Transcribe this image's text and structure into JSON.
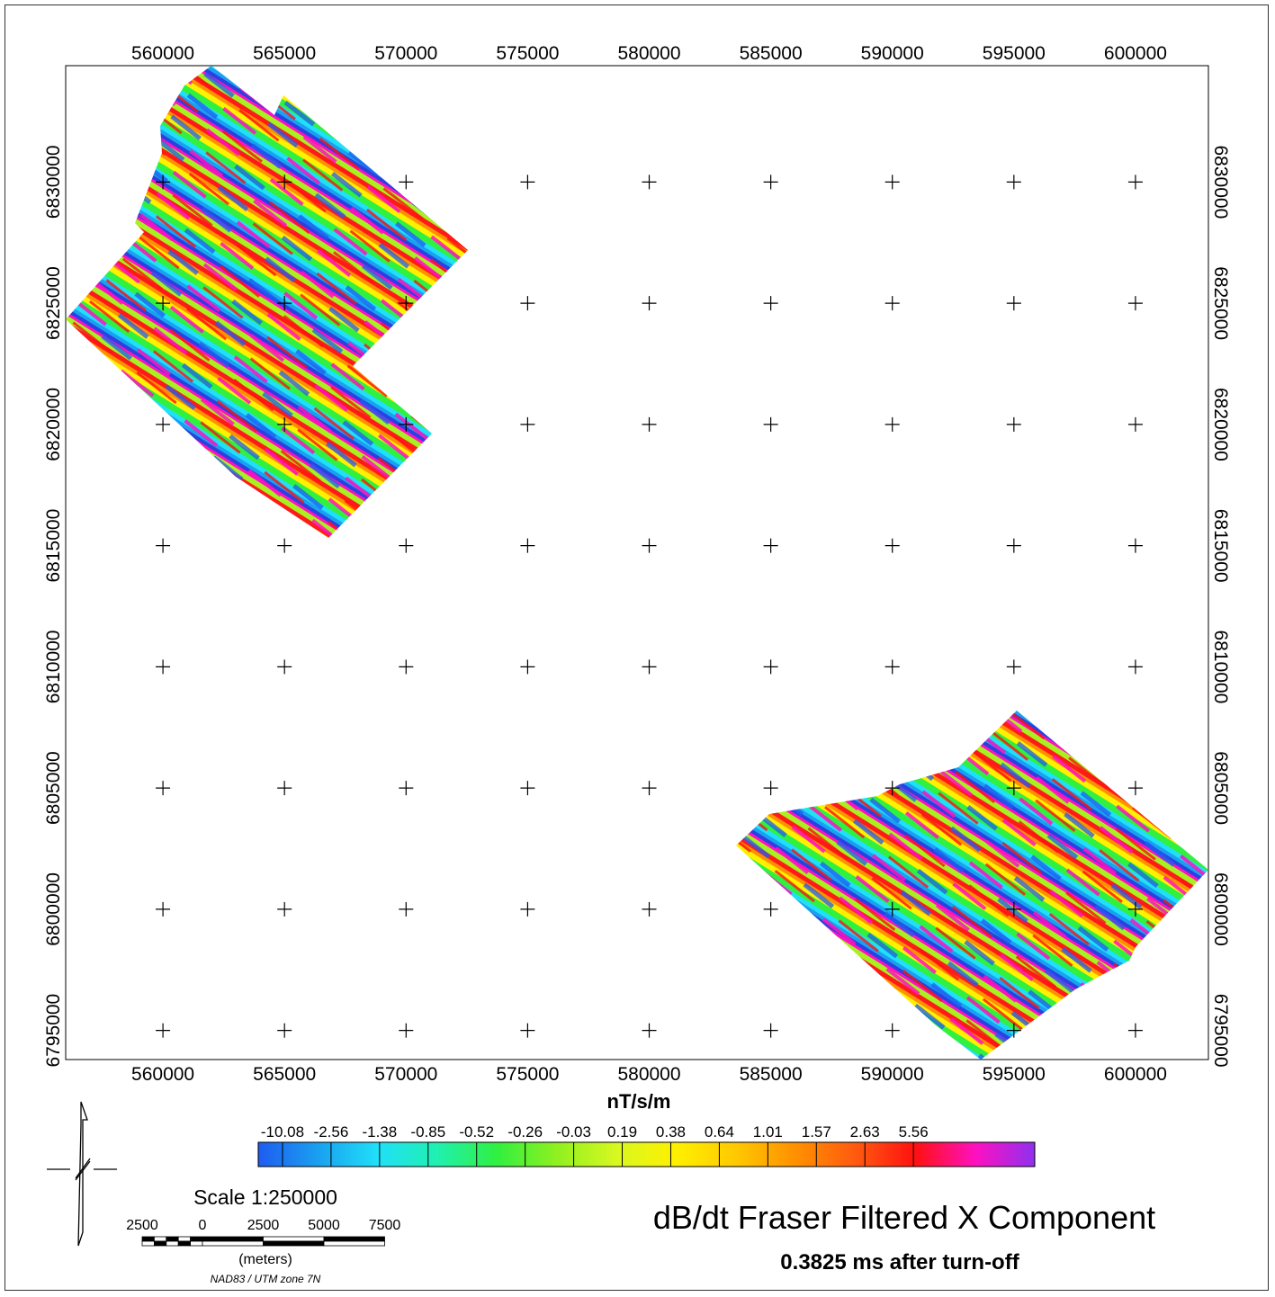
{
  "map": {
    "x_ticks": [
      "560000",
      "565000",
      "570000",
      "575000",
      "580000",
      "585000",
      "590000",
      "595000",
      "600000"
    ],
    "y_ticks": [
      "6830000",
      "6825000",
      "6820000",
      "6815000",
      "6810000",
      "6805000",
      "6800000",
      "6795000"
    ],
    "x_range": [
      556000,
      603000
    ],
    "y_range": [
      6793800,
      6834800
    ],
    "units": "nT/s/m"
  },
  "legend": {
    "labels": [
      "-10.08",
      "-2.56",
      "-1.38",
      "-0.85",
      "-0.52",
      "-0.26",
      "-0.03",
      "0.19",
      "0.38",
      "0.64",
      "1.01",
      "1.57",
      "2.63",
      "5.56"
    ],
    "colors": [
      "#1e5cf0",
      "#1aa0f0",
      "#20e0f8",
      "#20f0b0",
      "#30f040",
      "#90f020",
      "#d8f820",
      "#fff000",
      "#ffc800",
      "#ff9000",
      "#ff5a10",
      "#ff1010",
      "#ff10c0",
      "#9030f0"
    ]
  },
  "scale": {
    "label": "Scale 1:250000",
    "ticks": [
      "2500",
      "0",
      "2500",
      "5000",
      "7500"
    ],
    "units": "(meters)",
    "projection": "NAD83 / UTM zone 7N"
  },
  "title": {
    "main": "dB/dt Fraser Filtered X Component",
    "sub": "0.3825 ms after turn-off"
  }
}
